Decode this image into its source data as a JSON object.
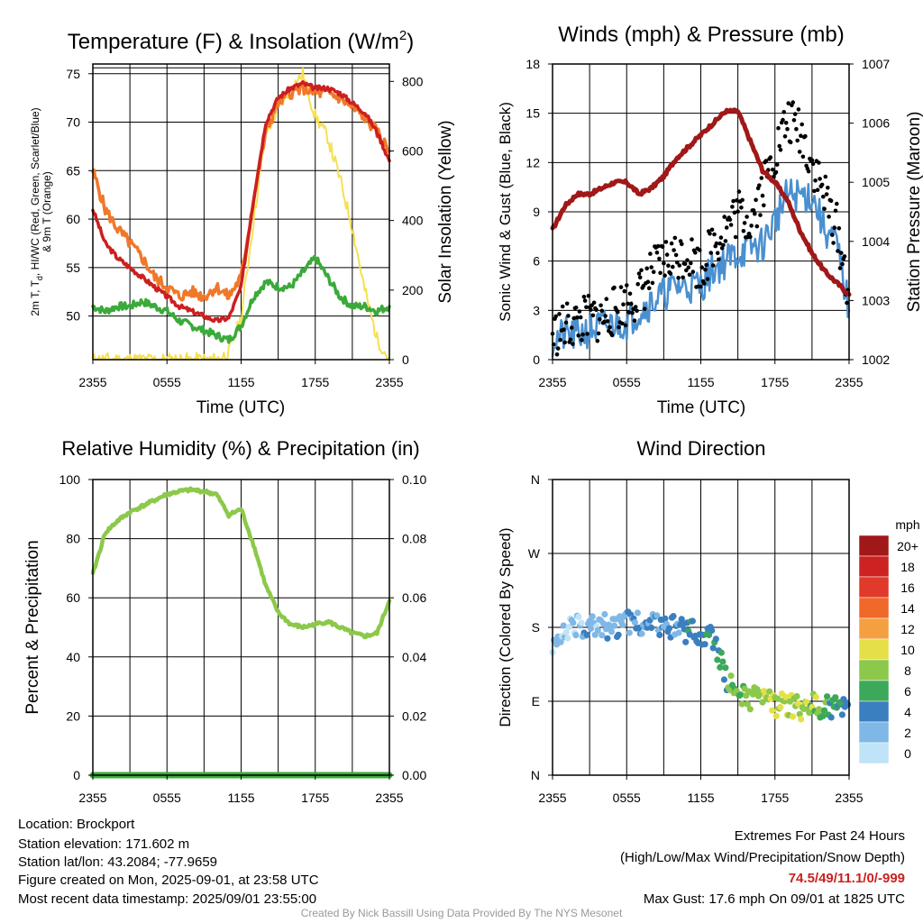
{
  "charts": {
    "temp": {
      "title": "Temperature (F) & Insolation (W/m",
      "title_sup": "2",
      "title_end": ")",
      "xlabel": "Time (UTC)",
      "ylabel_left_1": "2m T, T",
      "ylabel_left_sub": "d",
      "ylabel_left_2": ", HI/WC (Red, Green, Scarlet/Blue)",
      "ylabel_left_3": "& 9m T (Orange)",
      "ylabel_right": "Solar Insolation (Yellow)",
      "xticks": [
        "2355",
        "0555",
        "1155",
        "1755",
        "2355"
      ],
      "yticks_left": [
        "50",
        "55",
        "60",
        "65",
        "70",
        "75"
      ],
      "yticks_right": [
        "0",
        "200",
        "400",
        "600",
        "800"
      ]
    },
    "wind": {
      "title": "Winds (mph) & Pressure (mb)",
      "xlabel": "Time (UTC)",
      "ylabel_left": "Sonic Wind & Gust (Blue, Black)",
      "ylabel_right": "Station Pressure (Maroon)",
      "xticks": [
        "2355",
        "0555",
        "1155",
        "1755",
        "2355"
      ],
      "yticks_left": [
        "0",
        "3",
        "6",
        "9",
        "12",
        "15",
        "18"
      ],
      "yticks_right": [
        "1002",
        "1003",
        "1004",
        "1005",
        "1006",
        "1007"
      ]
    },
    "rh": {
      "title": "Relative Humidity (%) & Precipitation (in)",
      "ylabel_left": "Percent & Precipitation",
      "xticks": [
        "2355",
        "0555",
        "1155",
        "1755",
        "2355"
      ],
      "yticks_left": [
        "0",
        "20",
        "40",
        "60",
        "80",
        "100"
      ],
      "yticks_right": [
        "0.00",
        "0.02",
        "0.04",
        "0.06",
        "0.08",
        "0.10"
      ]
    },
    "dir": {
      "title": "Wind Direction",
      "ylabel_left": "Direction (Colored By Speed)",
      "xticks": [
        "2355",
        "0555",
        "1155",
        "1755",
        "2355"
      ],
      "yticks_left": [
        "N",
        "E",
        "S",
        "W",
        "N"
      ],
      "legend_title": "mph",
      "legend_labels": [
        "20+",
        "18",
        "16",
        "14",
        "12",
        "10",
        "8",
        "6",
        "4",
        "2",
        "0"
      ],
      "legend_colors": [
        "#a01818",
        "#cc2222",
        "#e03a2a",
        "#f0682a",
        "#f5a040",
        "#e6e048",
        "#8cc84a",
        "#3ca85a",
        "#3a7fc0",
        "#7fb8e6",
        "#bfe3f7"
      ]
    }
  },
  "chart_data": [
    {
      "type": "line",
      "title": "Temperature (F) & Insolation (W/m2)",
      "xlabel": "Time (UTC)",
      "ylim": [
        45.5,
        76
      ],
      "y2lim": [
        0,
        850
      ],
      "x": [
        0,
        1,
        2,
        3,
        4,
        5,
        6,
        7,
        8,
        9,
        10,
        11,
        12,
        13,
        14,
        15,
        16,
        17,
        18,
        19,
        20,
        21,
        22,
        23,
        24
      ],
      "series": [
        {
          "name": "2m T",
          "color": "#cc1f1f",
          "axis": "left",
          "values": [
            61,
            57.5,
            56,
            55,
            54,
            53,
            52,
            51,
            50.5,
            50,
            49.5,
            49.8,
            53,
            62,
            70,
            72.5,
            73.5,
            74,
            73.5,
            73.5,
            73,
            72,
            71,
            69,
            66
          ]
        },
        {
          "name": "9m T",
          "color": "#f0782a",
          "axis": "left",
          "values": [
            65,
            61,
            59,
            57.5,
            56,
            54,
            53,
            52,
            52.5,
            52,
            53,
            52,
            54,
            62,
            69,
            72,
            73,
            73.5,
            73,
            73,
            72.5,
            71.5,
            70.5,
            69,
            67
          ]
        },
        {
          "name": "Td",
          "color": "#3aaa3a",
          "axis": "left",
          "values": [
            51,
            50.5,
            51,
            51,
            51.5,
            51,
            50.5,
            49.5,
            49,
            48.5,
            48,
            47.5,
            49,
            52,
            53.5,
            53,
            53,
            54.5,
            56,
            54,
            52,
            51,
            51,
            50.5,
            51
          ]
        },
        {
          "name": "Solar Insolation",
          "color": "#f5e050",
          "axis": "right",
          "values": [
            0,
            0,
            0,
            0,
            0,
            0,
            0,
            0,
            0,
            0,
            0,
            20,
            120,
            400,
            650,
            720,
            780,
            820,
            700,
            640,
            520,
            380,
            200,
            60,
            0
          ]
        }
      ]
    },
    {
      "type": "line",
      "title": "Winds (mph) & Pressure (mb)",
      "xlabel": "Time (UTC)",
      "ylim": [
        0,
        18
      ],
      "y2lim": [
        1002,
        1007
      ],
      "x": [
        0,
        1,
        2,
        3,
        4,
        5,
        6,
        7,
        8,
        9,
        10,
        11,
        12,
        13,
        14,
        15,
        16,
        17,
        18,
        19,
        20,
        21,
        22,
        23,
        24
      ],
      "series": [
        {
          "name": "Sonic Wind",
          "color": "#4a90d0",
          "axis": "left",
          "values": [
            1.2,
            1.5,
            1.5,
            1.8,
            2,
            2.2,
            2.3,
            3,
            3.5,
            4,
            4.5,
            4.5,
            4.5,
            5.5,
            6,
            6.5,
            6.8,
            7,
            8.5,
            10,
            10,
            10,
            8,
            7,
            3
          ]
        },
        {
          "name": "Gust",
          "color": "#000000",
          "axis": "left",
          "values": [
            1.5,
            2,
            2.3,
            2.5,
            2.5,
            3,
            3.5,
            4,
            5.2,
            6,
            6.3,
            6.5,
            5.5,
            7,
            8,
            9,
            8.5,
            10.5,
            12.5,
            14.5,
            14,
            12,
            10,
            8,
            4
          ]
        },
        {
          "name": "Station Pressure",
          "color": "#a01818",
          "axis": "right",
          "values": [
            1004.2,
            1004.6,
            1004.8,
            1004.8,
            1004.9,
            1005.0,
            1005.0,
            1004.8,
            1004.9,
            1005.1,
            1005.4,
            1005.6,
            1005.8,
            1006.0,
            1006.2,
            1006.2,
            1005.7,
            1005.2,
            1005.0,
            1004.7,
            1004.2,
            1003.8,
            1003.5,
            1003.3,
            1003.1
          ]
        }
      ]
    },
    {
      "type": "line",
      "title": "Relative Humidity (%) & Precipitation (in)",
      "ylim": [
        0,
        100
      ],
      "y2lim": [
        0,
        0.1
      ],
      "x": [
        0,
        1,
        2,
        3,
        4,
        5,
        6,
        7,
        8,
        9,
        10,
        11,
        12,
        13,
        14,
        15,
        16,
        17,
        18,
        19,
        20,
        21,
        22,
        23,
        24
      ],
      "series": [
        {
          "name": "Relative Humidity",
          "color": "#8cc84a",
          "axis": "left",
          "values": [
            68,
            82,
            86,
            89,
            91,
            93,
            95,
            96,
            96.5,
            96,
            95,
            88,
            90,
            78,
            64,
            55,
            51,
            50,
            51,
            52,
            50,
            48,
            47,
            48,
            59
          ]
        },
        {
          "name": "Precipitation",
          "color": "#3aaa3a",
          "axis": "right",
          "values": [
            0,
            0,
            0,
            0,
            0,
            0,
            0,
            0,
            0,
            0,
            0,
            0,
            0,
            0,
            0,
            0,
            0,
            0,
            0,
            0,
            0,
            0,
            0,
            0,
            0
          ]
        }
      ]
    },
    {
      "type": "scatter",
      "title": "Wind Direction",
      "x": [
        0,
        1,
        2,
        3,
        4,
        5,
        6,
        7,
        8,
        9,
        10,
        11,
        12,
        13,
        14,
        15,
        16,
        17,
        18,
        19,
        20,
        21,
        22,
        23,
        24
      ],
      "series": [
        {
          "name": "Direction (deg)",
          "values": [
            150,
            175,
            180,
            185,
            182,
            180,
            185,
            188,
            182,
            180,
            180,
            175,
            175,
            165,
            120,
            100,
            95,
            90,
            85,
            85,
            80,
            85,
            80,
            85,
            90
          ]
        }
      ],
      "speed_mph": [
        1,
        1,
        1.5,
        2,
        2,
        2.5,
        2.5,
        3,
        3.5,
        3.5,
        3.5,
        4,
        4,
        4.5,
        6,
        7,
        7.5,
        8,
        9,
        9.5,
        9,
        8,
        7,
        5,
        3
      ]
    }
  ],
  "info": {
    "location": "Location: Brockport",
    "elevation": "Station elevation: 171.602 m",
    "latlon": "Station lat/lon: 43.2084; -77.9659",
    "created": "Figure created on Mon, 2025-09-01, at 23:58 UTC",
    "recent": "Most recent data timestamp: 2025/09/01 23:55:00",
    "extremes_title": "Extremes For Past 24 Hours",
    "extremes_sub": "(High/Low/Max Wind/Precipitation/Snow Depth)",
    "extremes_values": "74.5/49/11.1/0/-999",
    "max_gust": "Max Gust: 17.6 mph On 09/01 at 1825 UTC",
    "credit": "Created By Nick Bassill Using Data Provided By The NYS Mesonet"
  },
  "colors": {
    "extremes": "#cc2020",
    "credit": "#999999"
  }
}
